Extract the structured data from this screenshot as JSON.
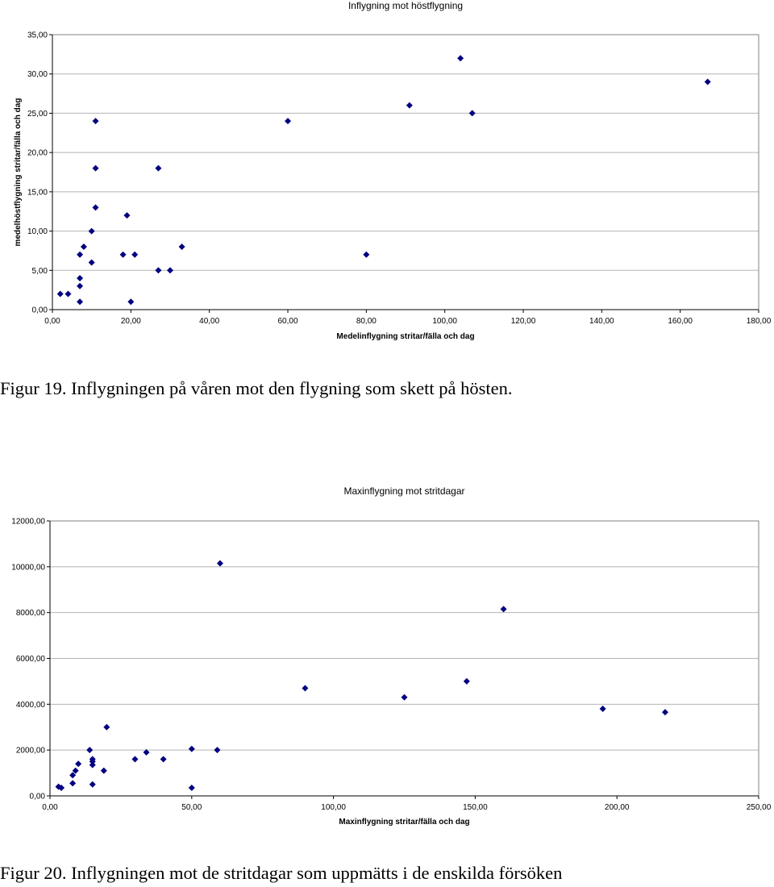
{
  "chart_data": [
    {
      "type": "scatter",
      "title": "Inflygning mot höstflygning",
      "xlabel": "Medelinflygning  stritar/fälla och dag",
      "ylabel": "medelhöstflygning stritar/fälla och dag",
      "xlim": [
        0,
        180
      ],
      "ylim": [
        0,
        35
      ],
      "xticks": [
        "0,00",
        "20,00",
        "40,00",
        "60,00",
        "80,00",
        "100,00",
        "120,00",
        "140,00",
        "160,00",
        "180,00"
      ],
      "yticks": [
        "0,00",
        "5,00",
        "10,00",
        "15,00",
        "20,00",
        "25,00",
        "30,00",
        "35,00"
      ],
      "grid": "horizontal",
      "marker_color": "#000080",
      "points": [
        {
          "x": 2,
          "y": 2
        },
        {
          "x": 4,
          "y": 2
        },
        {
          "x": 7,
          "y": 1
        },
        {
          "x": 7,
          "y": 3
        },
        {
          "x": 7,
          "y": 4
        },
        {
          "x": 7,
          "y": 7
        },
        {
          "x": 8,
          "y": 8
        },
        {
          "x": 10,
          "y": 6
        },
        {
          "x": 10,
          "y": 10
        },
        {
          "x": 11,
          "y": 13
        },
        {
          "x": 11,
          "y": 18
        },
        {
          "x": 11,
          "y": 24
        },
        {
          "x": 18,
          "y": 7
        },
        {
          "x": 19,
          "y": 12
        },
        {
          "x": 20,
          "y": 1
        },
        {
          "x": 21,
          "y": 7
        },
        {
          "x": 27,
          "y": 5
        },
        {
          "x": 27,
          "y": 18
        },
        {
          "x": 30,
          "y": 5
        },
        {
          "x": 33,
          "y": 8
        },
        {
          "x": 60,
          "y": 24
        },
        {
          "x": 80,
          "y": 7
        },
        {
          "x": 91,
          "y": 26
        },
        {
          "x": 104,
          "y": 32
        },
        {
          "x": 107,
          "y": 25
        },
        {
          "x": 167,
          "y": 29
        }
      ]
    },
    {
      "type": "scatter",
      "title": "Maxinflygning mot stritdagar",
      "xlabel": "Maxinflygning stritar/fälla och dag",
      "ylabel": "",
      "xlim": [
        0,
        250
      ],
      "ylim": [
        0,
        12000
      ],
      "xticks": [
        "0,00",
        "50,00",
        "100,00",
        "150,00",
        "200,00",
        "250,00"
      ],
      "yticks": [
        "0,00",
        "2000,00",
        "4000,00",
        "6000,00",
        "8000,00",
        "10000,00",
        "12000,00"
      ],
      "grid": "horizontal",
      "marker_color": "#000080",
      "points": [
        {
          "x": 3,
          "y": 400
        },
        {
          "x": 4,
          "y": 350
        },
        {
          "x": 8,
          "y": 550
        },
        {
          "x": 8,
          "y": 900
        },
        {
          "x": 9,
          "y": 1100
        },
        {
          "x": 10,
          "y": 1400
        },
        {
          "x": 14,
          "y": 2000
        },
        {
          "x": 15,
          "y": 1500
        },
        {
          "x": 15,
          "y": 1600
        },
        {
          "x": 15,
          "y": 1350
        },
        {
          "x": 15,
          "y": 500
        },
        {
          "x": 19,
          "y": 1100
        },
        {
          "x": 20,
          "y": 3000
        },
        {
          "x": 30,
          "y": 1600
        },
        {
          "x": 34,
          "y": 1900
        },
        {
          "x": 40,
          "y": 1600
        },
        {
          "x": 50,
          "y": 2050
        },
        {
          "x": 50,
          "y": 350
        },
        {
          "x": 59,
          "y": 2000
        },
        {
          "x": 60,
          "y": 10150
        },
        {
          "x": 90,
          "y": 4700
        },
        {
          "x": 125,
          "y": 4300
        },
        {
          "x": 147,
          "y": 5000
        },
        {
          "x": 160,
          "y": 8150
        },
        {
          "x": 195,
          "y": 3800
        },
        {
          "x": 217,
          "y": 3650
        }
      ]
    }
  ],
  "captions": {
    "fig19": "Figur 19. Inflygningen på våren mot den flygning som skett på hösten.",
    "fig20": "Figur 20. Inflygningen mot de stritdagar som uppmätts i de enskilda försöken"
  }
}
